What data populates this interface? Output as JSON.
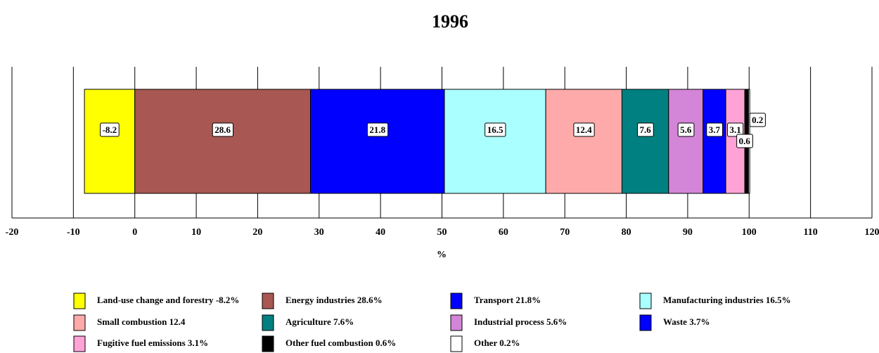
{
  "chart_data": {
    "type": "bar",
    "orientation": "horizontal",
    "stacked": true,
    "title": "1996",
    "x_label": "%",
    "categories": [
      null
    ],
    "xlim": [
      -20,
      120
    ],
    "xticks": [
      -20,
      -10,
      0,
      10,
      20,
      30,
      40,
      50,
      60,
      70,
      80,
      90,
      100,
      110,
      120
    ],
    "grid": true,
    "series": [
      {
        "name": "Land-use change and forestry -8.2%",
        "color": "#ffff00",
        "values": [
          -8.2
        ]
      },
      {
        "name": "Energy industries 28.6%",
        "color": "#a85752",
        "values": [
          28.6
        ]
      },
      {
        "name": "Transport 21.8%",
        "color": "#0000ff",
        "values": [
          21.8
        ]
      },
      {
        "name": "Manufacturing industries 16.5%",
        "color": "#aaffff",
        "values": [
          16.5
        ]
      },
      {
        "name": "Small combustion 12.4",
        "color": "#ffaaaa",
        "values": [
          12.4
        ]
      },
      {
        "name": "Agriculture 7.6%",
        "color": "#008080",
        "values": [
          7.6
        ]
      },
      {
        "name": "Industrial process 5.6%",
        "color": "#d385d8",
        "values": [
          5.6
        ]
      },
      {
        "name": "Waste 3.7%",
        "color": "#0000ff",
        "values": [
          3.7
        ]
      },
      {
        "name": "Fugitive fuel emissions 3.1%",
        "color": "#ffa3d6",
        "values": [
          3.1
        ]
      },
      {
        "name": "Other fuel combustion 0.6%",
        "color": "#000000",
        "values": [
          0.6
        ]
      },
      {
        "name": "Other 0.2%",
        "color": "#ffffff",
        "values": [
          0.2
        ]
      }
    ]
  }
}
